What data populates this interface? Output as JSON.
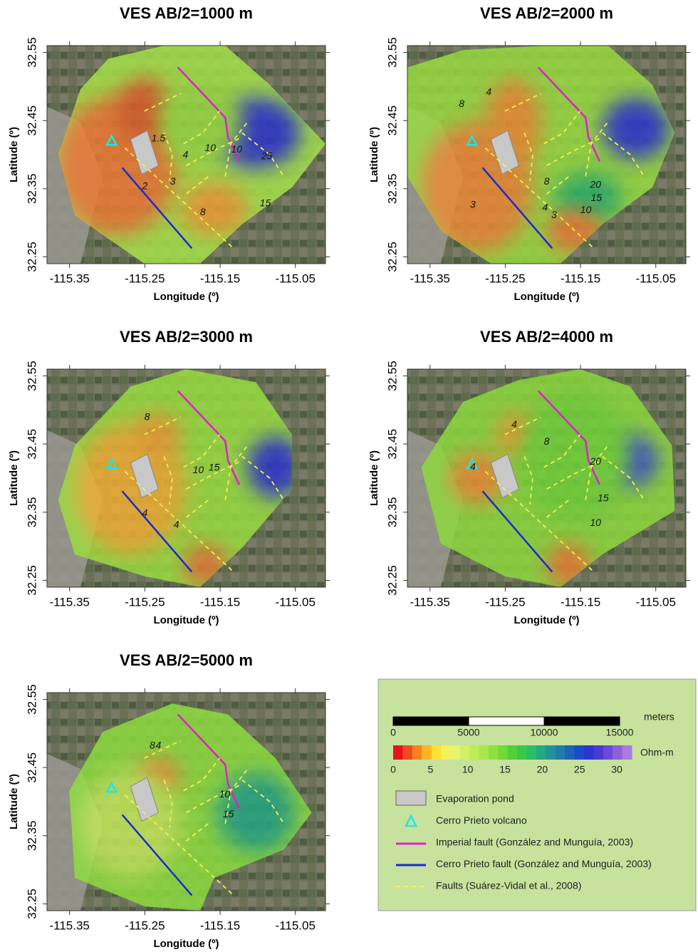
{
  "panels": [
    {
      "title": "VES AB/2=1000 m",
      "xlabel": "Longitude (º)",
      "ylabel": "Latitude (º)",
      "xlim": [
        -115.38,
        -115.01
      ],
      "ylim": [
        32.24,
        32.56
      ],
      "xticks": [
        -115.35,
        -115.25,
        -115.15,
        -115.05
      ],
      "yticks": [
        32.25,
        32.35,
        32.45,
        32.55
      ],
      "contour_labels": [
        {
          "value": 1.5,
          "lon": -115.232,
          "lat": 32.423
        },
        {
          "value": 4,
          "lon": -115.196,
          "lat": 32.399
        },
        {
          "value": 10,
          "lon": -115.163,
          "lat": 32.409
        },
        {
          "value": 10,
          "lon": -115.128,
          "lat": 32.407
        },
        {
          "value": 25,
          "lon": -115.088,
          "lat": 32.397
        },
        {
          "value": 3,
          "lon": -115.213,
          "lat": 32.36
        },
        {
          "value": 2,
          "lon": -115.25,
          "lat": 32.353
        },
        {
          "value": 8,
          "lon": -115.173,
          "lat": 32.315
        },
        {
          "value": 15,
          "lon": -115.09,
          "lat": 32.328
        }
      ]
    },
    {
      "title": "VES AB/2=2000 m",
      "xlabel": "Longitude (º)",
      "ylabel": "Latitude (º)",
      "xlim": [
        -115.38,
        -115.01
      ],
      "ylim": [
        32.24,
        32.56
      ],
      "xticks": [
        -115.35,
        -115.25,
        -115.15,
        -115.05
      ],
      "yticks": [
        32.25,
        32.35,
        32.45,
        32.55
      ],
      "contour_labels": [
        {
          "value": 8,
          "lon": -115.308,
          "lat": 32.474
        },
        {
          "value": 4,
          "lon": -115.272,
          "lat": 32.491
        },
        {
          "value": 8,
          "lon": -115.195,
          "lat": 32.36
        },
        {
          "value": 20,
          "lon": -115.13,
          "lat": 32.355
        },
        {
          "value": 15,
          "lon": -115.129,
          "lat": 32.336
        },
        {
          "value": 10,
          "lon": -115.143,
          "lat": 32.318
        },
        {
          "value": 4,
          "lon": -115.197,
          "lat": 32.322
        },
        {
          "value": 3,
          "lon": -115.185,
          "lat": 32.311
        },
        {
          "value": 3,
          "lon": -115.293,
          "lat": 32.326
        }
      ]
    },
    {
      "title": "VES AB/2=3000 m",
      "xlabel": "Longitude (º)",
      "ylabel": "Latitude (º)",
      "xlim": [
        -115.38,
        -115.01
      ],
      "ylim": [
        32.24,
        32.56
      ],
      "xticks": [
        -115.35,
        -115.25,
        -115.15,
        -115.05
      ],
      "yticks": [
        32.25,
        32.35,
        32.45,
        32.55
      ],
      "contour_labels": [
        {
          "value": 8,
          "lon": -115.247,
          "lat": 32.489
        },
        {
          "value": 10,
          "lon": -115.179,
          "lat": 32.411
        },
        {
          "value": 15,
          "lon": -115.158,
          "lat": 32.415
        },
        {
          "value": 4,
          "lon": -115.25,
          "lat": 32.348
        },
        {
          "value": 4,
          "lon": -115.208,
          "lat": 32.331
        }
      ]
    },
    {
      "title": "VES AB/2=4000 m",
      "xlabel": "Longitude (º)",
      "ylabel": "Latitude (º)",
      "xlim": [
        -115.38,
        -115.01
      ],
      "ylim": [
        32.24,
        32.56
      ],
      "xticks": [
        -115.35,
        -115.25,
        -115.15,
        -115.05
      ],
      "yticks": [
        32.25,
        32.35,
        32.45,
        32.55
      ],
      "contour_labels": [
        {
          "value": 4,
          "lon": -115.238,
          "lat": 32.478
        },
        {
          "value": 8,
          "lon": -115.195,
          "lat": 32.453
        },
        {
          "value": 20,
          "lon": -115.13,
          "lat": 32.424
        },
        {
          "value": 15,
          "lon": -115.12,
          "lat": 32.37
        },
        {
          "value": 10,
          "lon": -115.13,
          "lat": 32.334
        },
        {
          "value": 4,
          "lon": -115.293,
          "lat": 32.416
        }
      ]
    },
    {
      "title": "VES AB/2=5000 m",
      "xlabel": "Longitude (º)",
      "ylabel": "Latitude (º)",
      "xlim": [
        -115.38,
        -115.01
      ],
      "ylim": [
        32.24,
        32.56
      ],
      "xticks": [
        -115.35,
        -115.25,
        -115.15,
        -115.05
      ],
      "yticks": [
        32.25,
        32.35,
        32.45,
        32.55
      ],
      "contour_labels": [
        {
          "value": 8,
          "lon": -115.24,
          "lat": 32.482
        },
        {
          "value": 4,
          "lon": -115.232,
          "lat": 32.482
        },
        {
          "value": 10,
          "lon": -115.144,
          "lat": 32.41
        },
        {
          "value": 15,
          "lon": -115.139,
          "lat": 32.381
        }
      ]
    }
  ],
  "legend": {
    "scale_bar": {
      "unit": "meters",
      "xlim": [
        0,
        15000
      ],
      "ticks": [
        0,
        5000,
        10000,
        15000
      ]
    },
    "colorbar": {
      "unit": "Ohm-m",
      "lim": [
        0,
        32
      ],
      "ticks": [
        0,
        5,
        10,
        15,
        20,
        25,
        30
      ],
      "colors": [
        "#e8141c",
        "#f04a1c",
        "#f8821e",
        "#fcb424",
        "#fde234",
        "#f4f25a",
        "#e6f46c",
        "#d2f064",
        "#bfec58",
        "#a8e64a",
        "#8ee03e",
        "#72d838",
        "#52d038",
        "#38c84a",
        "#2abe68",
        "#22a884",
        "#20949a",
        "#1e7ea8",
        "#1c64b8",
        "#1a4ac8",
        "#2a36d0",
        "#4a3ad4",
        "#6a4ad8",
        "#8c60dc",
        "#aa7ae0"
      ]
    },
    "items": [
      "Evaporation pond",
      "Cerro Prieto volcano",
      "Imperial fault (González and Munguía, 2003)",
      "Cerro Prieto fault (González and Munguía, 2003)",
      "Faults (Suárez-Vidal et al., 2008)"
    ]
  }
}
